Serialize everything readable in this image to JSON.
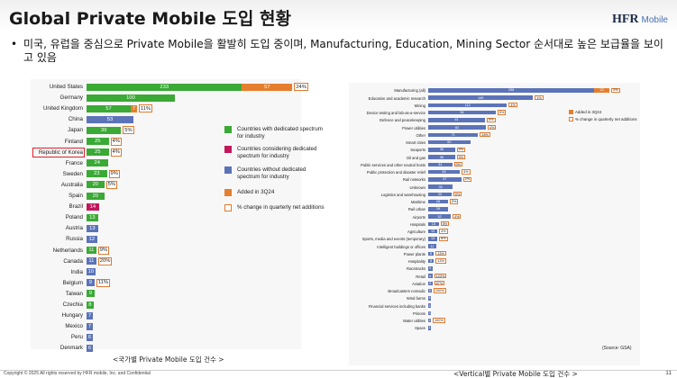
{
  "header": {
    "title": "Global Private Mobile 도입 현황",
    "logo_main": "HFR",
    "logo_sub": "Mobile"
  },
  "bullet": {
    "dot": "•",
    "text": "미국, 유럽을 중심으로 Private Mobile을 활발히 도입 중이며, Manufacturing, Education, Mining Sector 순서대로 높은 보급율을 보이고 있음"
  },
  "colors": {
    "dedicated": "#3aa935",
    "considering": "#c2185b",
    "without": "#5b73b8",
    "added": "#e57f2e",
    "pct_outline": "#e07b2f",
    "highlight": "#e0202a"
  },
  "chart_data": [
    {
      "type": "bar",
      "orientation": "horizontal",
      "caption": "<국가별 Private Mobile 도입 건수 >",
      "categories": [
        "United States",
        "Germany",
        "United Kingdom",
        "China",
        "Japan",
        "Finland",
        "Republic of Korea",
        "France",
        "Sweden",
        "Australia",
        "Spain",
        "Brazil",
        "Poland",
        "Austria",
        "Russia",
        "Netherlands",
        "Canada",
        "India",
        "Belgium",
        "Taiwan",
        "Czechia",
        "Hungary",
        "Mexico",
        "Peru",
        "Denmark"
      ],
      "values": [
        233,
        100,
        57,
        53,
        39,
        25,
        25,
        24,
        23,
        20,
        20,
        14,
        13,
        13,
        12,
        11,
        11,
        10,
        9,
        9,
        8,
        7,
        7,
        6,
        6
      ],
      "added_3q24": [
        57,
        null,
        7,
        null,
        null,
        null,
        null,
        null,
        null,
        null,
        null,
        null,
        null,
        null,
        null,
        null,
        null,
        null,
        null,
        null,
        null,
        null,
        null,
        null,
        null
      ],
      "pct_change": [
        "24%",
        null,
        "11%",
        null,
        "5%",
        "4%",
        "4%",
        null,
        "9%",
        "5%",
        null,
        null,
        null,
        null,
        null,
        "9%",
        "20%",
        null,
        "11%",
        null,
        null,
        null,
        null,
        null,
        null
      ],
      "spectrum": [
        "dedicated",
        "dedicated",
        "dedicated",
        "without",
        "dedicated",
        "dedicated",
        "dedicated",
        "dedicated",
        "dedicated",
        "dedicated",
        "dedicated",
        "considering",
        "dedicated",
        "without",
        "without",
        "dedicated",
        "without",
        "without",
        "without",
        "dedicated",
        "dedicated",
        "without",
        "without",
        "without",
        "without"
      ],
      "highlighted": "Republic of Korea",
      "legend": [
        {
          "key": "dedicated",
          "label": "Countries with dedicated spectrum for industry"
        },
        {
          "key": "considering",
          "label": "Countries considering dedicated spectrum for industry"
        },
        {
          "key": "without",
          "label": "Countries without dedicated spectrum for industry"
        },
        {
          "key": "added",
          "label": "Added in 3Q24"
        },
        {
          "key": "pct",
          "label": "% change in quarterly net additions"
        }
      ]
    },
    {
      "type": "bar",
      "orientation": "horizontal",
      "caption": "<Vertical별  Private Mobile 도입 건수 >",
      "source": "(Source: GSA)",
      "categories": [
        "Manufacturing (all)",
        "Education and academic research",
        "Mining",
        "Device testing and lab-as-a-service",
        "Defence and peacekeeping",
        "Power utilities",
        "Other",
        "Smart cities",
        "Seaports",
        "Oil and gas",
        "Public services and other neutral hosts",
        "Public protection and disaster relief",
        "Rail networks",
        "Unknown",
        "Logistics and warehousing",
        "Maritime",
        "Rail urban",
        "Airports",
        "Hospitals",
        "Agriculture",
        "Sports, media and events (temporary)",
        "Intelligent buildings or offices",
        "Power plants",
        "Hospitality",
        "Racetracks",
        "Retail",
        "Aviation",
        "Broadcasters nomadic",
        "Wind farms",
        "Financial services including banks",
        "Prisons",
        "Water utilities",
        "Space"
      ],
      "values": [
        258,
        149,
        112,
        96,
        81,
        82,
        71,
        60,
        38,
        38,
        34,
        45,
        47,
        35,
        33,
        28,
        28,
        32,
        15,
        13,
        13,
        11,
        8,
        8,
        6,
        6,
        6,
        5,
        4,
        3,
        3,
        2,
        1
      ],
      "added_3q24": [
        22,
        null,
        null,
        null,
        null,
        null,
        null,
        null,
        null,
        null,
        null,
        null,
        null,
        null,
        null,
        null,
        null,
        null,
        null,
        null,
        null,
        null,
        null,
        null,
        null,
        null,
        null,
        null,
        null,
        null,
        null,
        null,
        null
      ],
      "pct_change": [
        "9%",
        "1%",
        "4%",
        "5%",
        "5%",
        "4%",
        "18%",
        null,
        "5%",
        "9%",
        "9%",
        "4%",
        "2%",
        null,
        "9%",
        "3%",
        null,
        "4%",
        "5%",
        "4%",
        "8%",
        null,
        "13%",
        "13%",
        null,
        "123%",
        "67%",
        "100%",
        null,
        null,
        null,
        "100%",
        null
      ],
      "legend": [
        {
          "key": "added",
          "label": "Added in 3Q24"
        },
        {
          "key": "pct",
          "label": "% change in quarterly net additions"
        }
      ]
    }
  ],
  "footer": {
    "copyright": "Copyright © 2025 All rights reserved by HFR mobile, Inc. and Confidential",
    "page": "11"
  }
}
